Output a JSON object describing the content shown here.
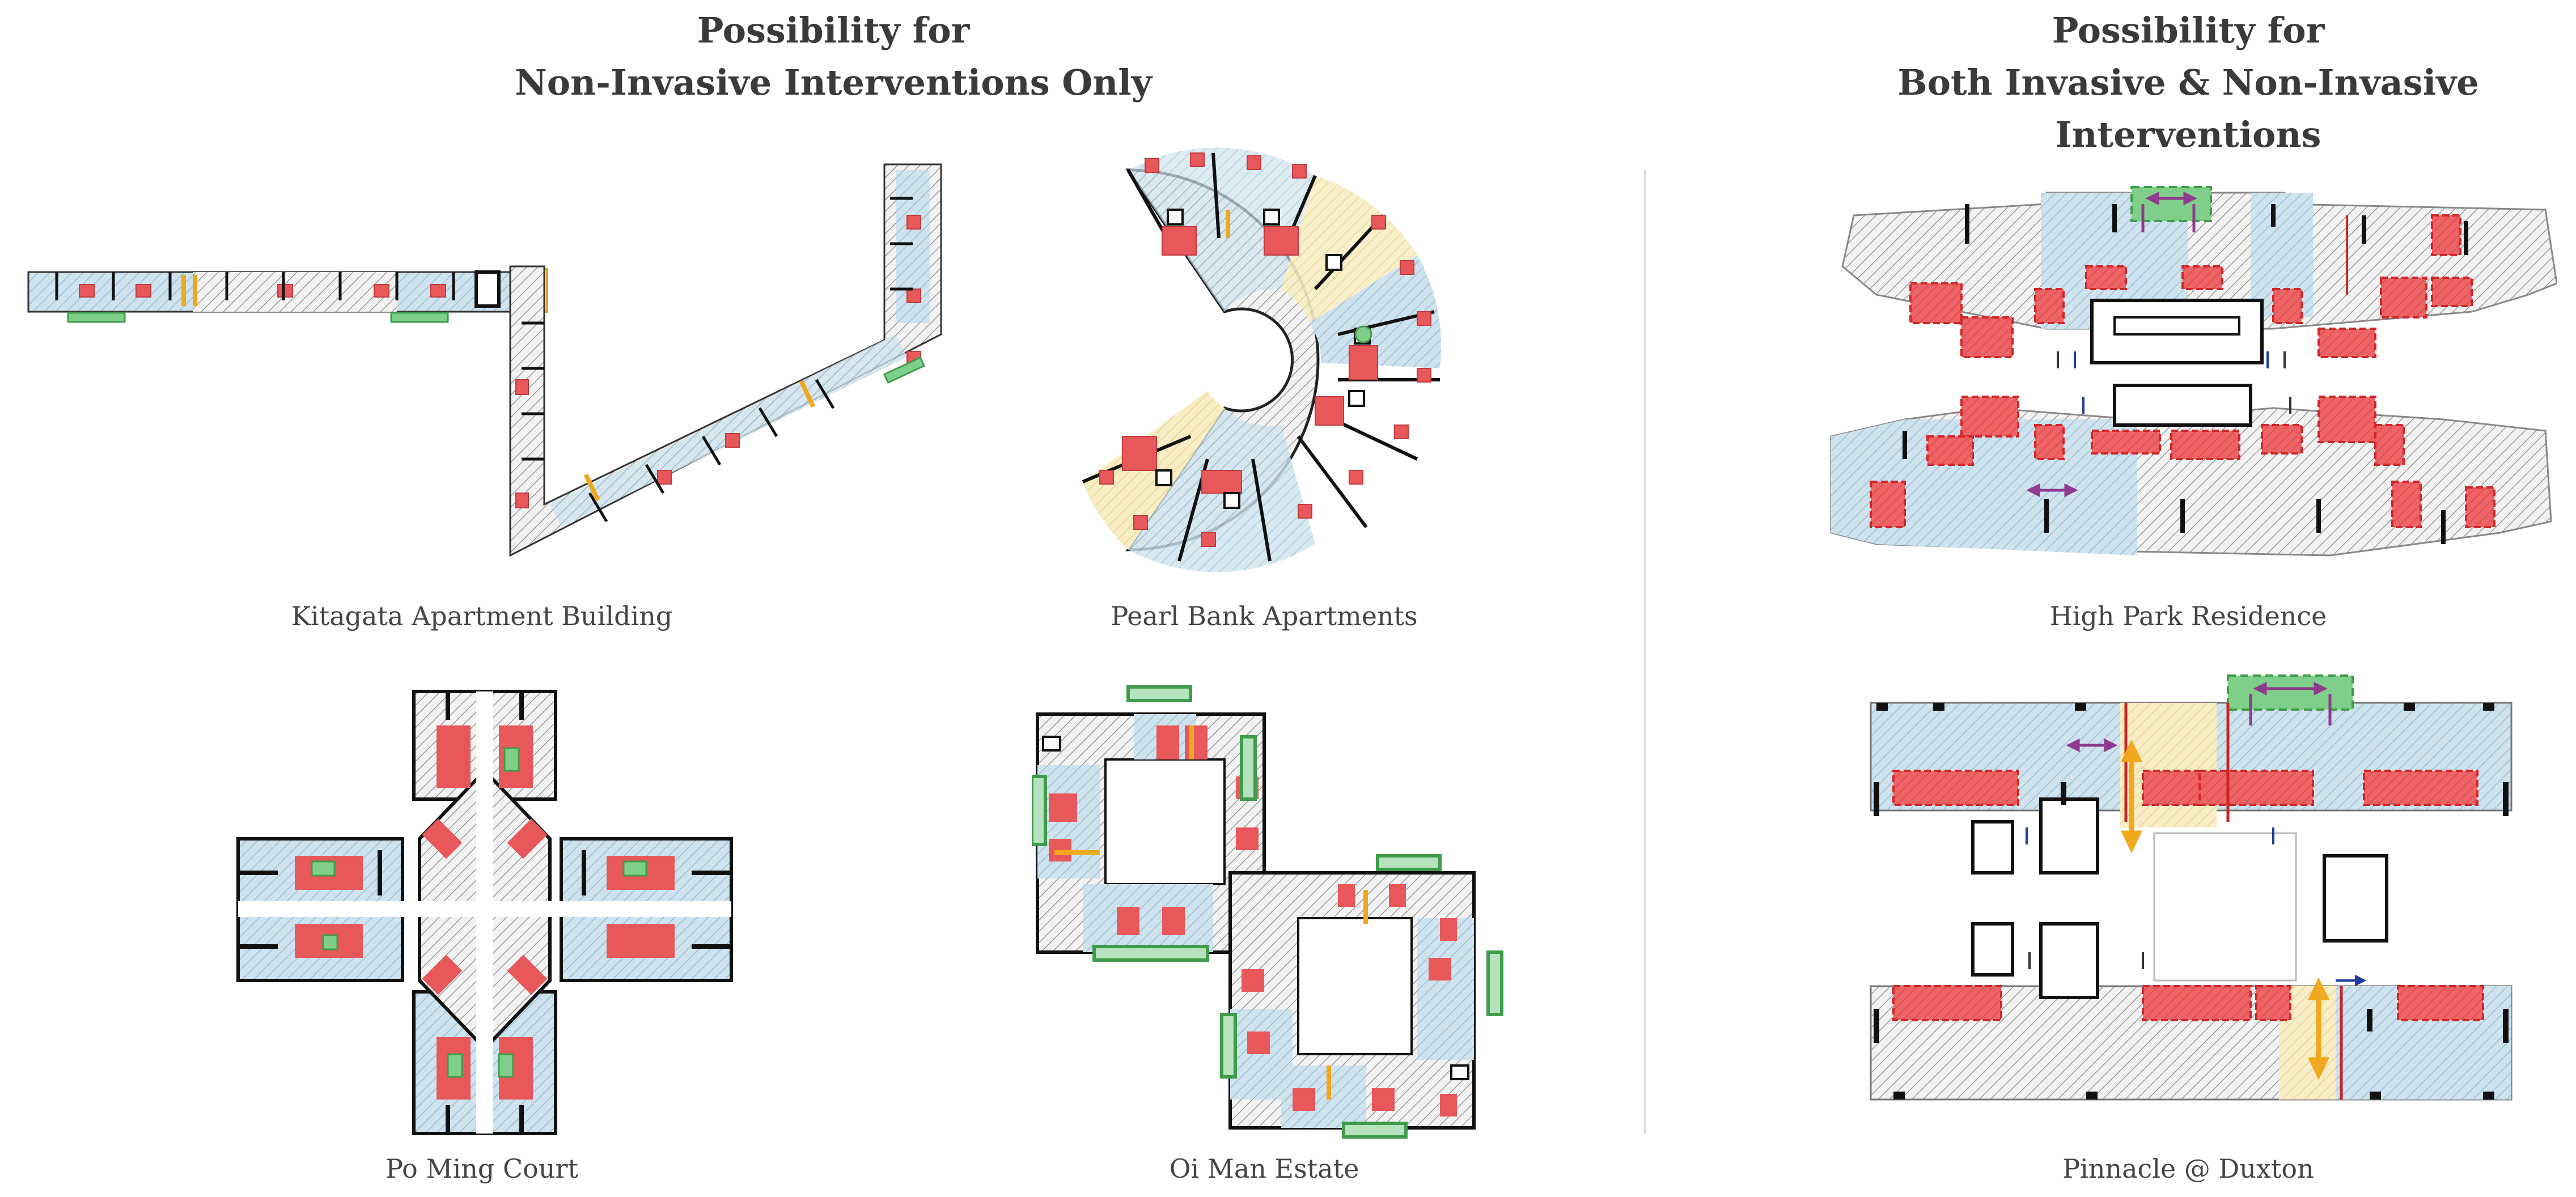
{
  "headings": {
    "left_line1": "Possibility for",
    "left_line2": "Non-Invasive Interventions Only",
    "right_line1": "Possibility for",
    "right_line2": "Both Invasive & Non-Invasive Interventions"
  },
  "captions": {
    "kitagata": "Kitagata Apartment Building",
    "pearl_bank": "Pearl Bank Apartments",
    "high_park": "High Park Residence",
    "po_ming": "Po Ming Court",
    "oi_man": "Oi Man Estate",
    "pinnacle": "Pinnacle @ Duxton"
  },
  "colors": {
    "red_zone": "#e8585a",
    "blue_zone": "#bcd8e6",
    "gray_zone": "#d9d9d9",
    "yellow_zone": "#f6e9b6",
    "green_zone": "#7fcf8a",
    "arrow_orange": "#f0a81d",
    "arrow_purple": "#8e3a8e",
    "arrow_blue": "#1f3d9a",
    "wall": "#111111"
  }
}
